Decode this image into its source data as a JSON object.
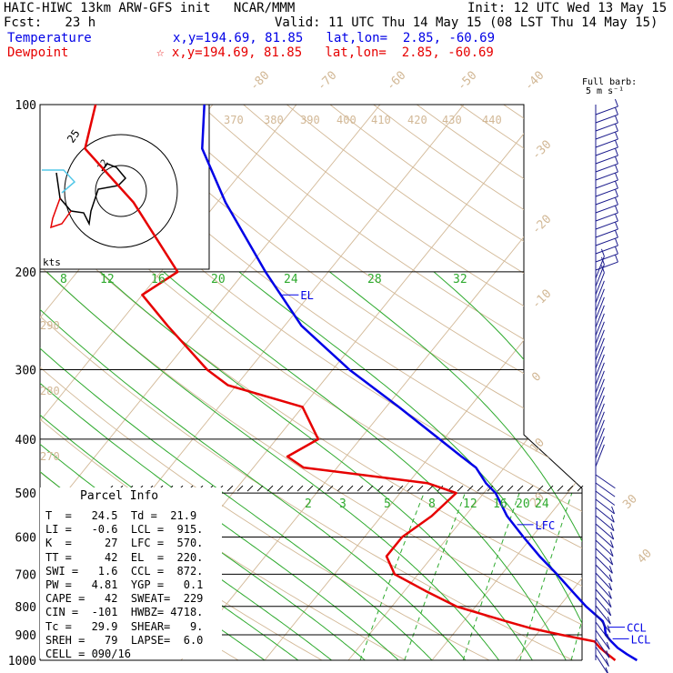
{
  "header": {
    "line1_left": "HAIC-HIWC 13km ARW-GFS init   NCAR/MMM",
    "line1_right": "Init: 12 UTC Wed 13 May 15",
    "line2_left": "Fcst:   23 h",
    "line2_right": "Valid: 11 UTC Thu 14 May 15 (08 LST Thu 14 May 15)",
    "temperature_label": "Temperature",
    "temperature_loc": "x,y=194.69, 81.85   lat,lon=  2.85, -60.69",
    "dewpoint_label": "Dewpoint",
    "dewpoint_loc": "☆ x,y=194.69, 81.85   lat,lon=  2.85, -60.69",
    "barb_legend_1": "Full barb:",
    "barb_legend_2": "5 m s⁻¹"
  },
  "colors": {
    "temperature": "#0000e6",
    "dewpoint": "#e60000",
    "isotherm": "#d2b896",
    "mixing_ratio": "#2eaa2e",
    "moist_adiabat": "#2eaa2e",
    "isobar": "#000000",
    "barb": "#1a1a8c"
  },
  "parcel_info": {
    "title": "Parcel Info",
    "rows": [
      "T  =   24.5  Td =  21.9",
      "LI =   -0.6  LCL =  915.",
      "K  =     27  LFC =  570.",
      "TT =     42  EL  =  220.",
      "SWI =   1.6  CCL =  872.",
      "PW =   4.81  YGP =   0.1",
      "CAPE =   42  SWEAT=  229",
      "CIN =  -101  HWBZ= 4718.",
      "Tc =   29.9  SHEAR=   9.",
      "SREH =   79  LAPSE=  6.0",
      "CELL = 090/16"
    ]
  },
  "hodograph": {
    "ring_label": "25",
    "inner_label": "12",
    "unit_label": "kts"
  },
  "chart_data": {
    "type": "line",
    "title": "",
    "ylabel": "",
    "pressure_levels": [
      100,
      200,
      300,
      400,
      500,
      600,
      700,
      800,
      900,
      1000
    ],
    "pressure_labels": [
      "100",
      "200",
      "300",
      "400",
      "500",
      "600",
      "700",
      "800",
      "900",
      "1000"
    ],
    "isotherm_labels": [
      "-80",
      "-70",
      "-60",
      "-50",
      "-40",
      "-30",
      "-20",
      "-10",
      "0",
      "10",
      "20",
      "30",
      "40"
    ],
    "theta_labels": [
      "370",
      "380",
      "390",
      "400",
      "410",
      "420",
      "430",
      "440",
      "290",
      "280",
      "270"
    ],
    "mixing_ratio_labels_upper": [
      "8",
      "12",
      "16",
      "20",
      "24",
      "28",
      "32"
    ],
    "mixing_ratio_labels_lower": [
      "2",
      "3",
      "5",
      "8",
      "12",
      "16",
      "20",
      "24"
    ],
    "levels_marked": [
      {
        "name": "EL",
        "pressure": 220
      },
      {
        "name": "LFC",
        "pressure": 570
      },
      {
        "name": "CCL",
        "pressure": 872
      },
      {
        "name": "LCL",
        "pressure": 915
      }
    ],
    "series": [
      {
        "name": "Temperature",
        "p": [
          1000,
          975,
          950,
          925,
          900,
          870,
          850,
          800,
          750,
          700,
          650,
          600,
          550,
          500,
          480,
          450,
          430,
          400,
          350,
          300,
          250,
          200,
          150,
          120,
          100
        ],
        "t": [
          24.5,
          22.7,
          21.0,
          19.6,
          18.3,
          17.4,
          16.6,
          13.2,
          10.0,
          6.6,
          2.8,
          -1.0,
          -5.0,
          -8.6,
          -10.7,
          -13.4,
          -16.2,
          -20.5,
          -28.5,
          -38.0,
          -48.0,
          -57.5,
          -69.0,
          -77.0,
          -81.0
        ]
      },
      {
        "name": "Dewpoint",
        "p": [
          1000,
          975,
          950,
          925,
          900,
          875,
          850,
          800,
          750,
          700,
          650,
          600,
          550,
          500,
          480,
          450,
          430,
          400,
          350,
          320,
          300,
          250,
          220,
          200,
          150,
          120,
          100
        ],
        "td": [
          21.9,
          20.4,
          18.9,
          17.6,
          13.0,
          8.6,
          5.0,
          -2.3,
          -7.5,
          -12.8,
          -15.5,
          -15.5,
          -14.0,
          -13.3,
          -17.7,
          -34.0,
          -37.0,
          -35.0,
          -40.0,
          -51.0,
          -55.0,
          -64.0,
          -70.0,
          -68.0,
          -80.0,
          -91.0,
          -94.0
        ]
      }
    ]
  }
}
